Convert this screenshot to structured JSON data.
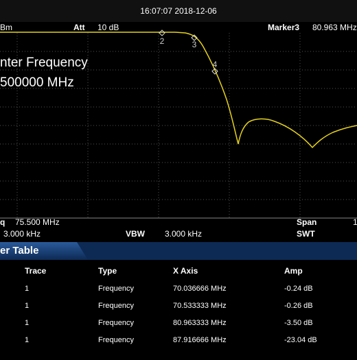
{
  "header": {
    "timestamp": "16:07:07 2018-12-06",
    "ref_unit": "Bm",
    "att_label": "Att",
    "att_value": "10 dB",
    "marker_label": "Marker3",
    "marker_value": "80.963 MHz"
  },
  "screen": {
    "center_label": "nter Frequency",
    "center_value": "500000 MHz",
    "markers": [
      "2",
      "3",
      "4"
    ]
  },
  "status": {
    "freq_label": "q",
    "freq_value": "75.500 MHz",
    "span_label": "Span",
    "span_value": "1",
    "rbw_value": "3.000 kHz",
    "vbw_label": "VBW",
    "vbw_value": "3.000 kHz",
    "swt_label": "SWT"
  },
  "table": {
    "title": "er Table",
    "columns": [
      "Trace",
      "Type",
      "X Axis",
      "Amp"
    ],
    "rows": [
      [
        "1",
        "Frequency",
        "70.036666 MHz",
        "-0.24 dB"
      ],
      [
        "1",
        "Frequency",
        "70.533333 MHz",
        "-0.26 dB"
      ],
      [
        "1",
        "Frequency",
        "80.963333 MHz",
        "-3.50 dB"
      ],
      [
        "1",
        "Frequency",
        "87.916666 MHz",
        "-23.04 dB"
      ]
    ]
  }
}
